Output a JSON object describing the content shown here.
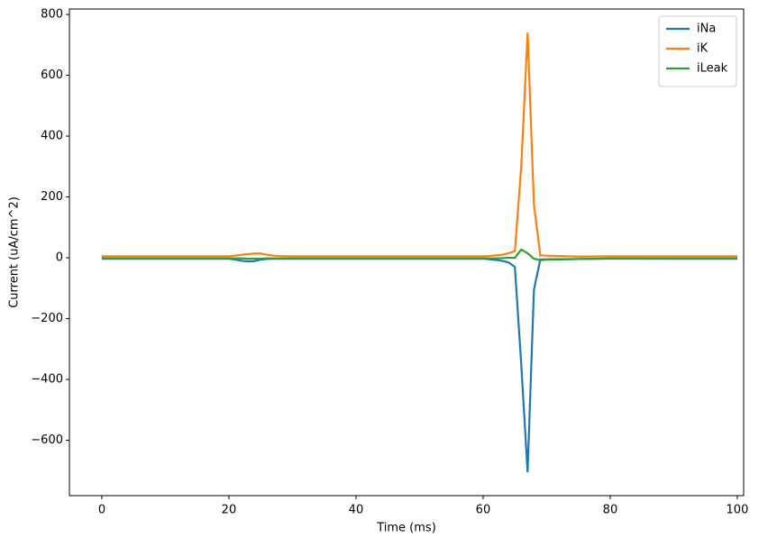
{
  "chart_data": {
    "type": "line",
    "x_label": "Time (ms)",
    "y_label": "Current (uA/cm^2)",
    "x": [
      0,
      20,
      21,
      22,
      23,
      24,
      25,
      26,
      27,
      28,
      30,
      35,
      40,
      50,
      60,
      61,
      62,
      63,
      64,
      65,
      66,
      67,
      68,
      69,
      70,
      75,
      80,
      90,
      100
    ],
    "series": [
      {
        "name": "iNa",
        "color": "#1f77b4",
        "values": [
          -3,
          -3,
          -6,
          -10,
          -12,
          -11,
          -6,
          -4,
          -3,
          -3,
          -3,
          -3,
          -3,
          -3,
          -3,
          -5,
          -7,
          -10,
          -15,
          -30,
          -350,
          -705,
          -105,
          -6,
          -5,
          -4,
          -3,
          -3,
          -3
        ]
      },
      {
        "name": "iK",
        "color": "#ff7f0e",
        "values": [
          5,
          5,
          7,
          10,
          12,
          14,
          14,
          10,
          7,
          6,
          5,
          5,
          5,
          5,
          5,
          6,
          8,
          10,
          15,
          22,
          300,
          740,
          175,
          8,
          7,
          4,
          5,
          5,
          5
        ]
      },
      {
        "name": "iLeak",
        "color": "#2ca02c",
        "values": [
          -2,
          -2,
          -2,
          -2,
          -3,
          -3,
          -3,
          -2,
          -2,
          -2,
          -2,
          -2,
          -2,
          -2,
          -2,
          -2,
          -2,
          -1,
          0,
          0,
          27,
          15,
          -3,
          -8,
          -6,
          -4,
          -2,
          -2,
          -2
        ]
      }
    ],
    "xlim": [
      -5.1,
      101
    ],
    "ylim": [
      -782,
      818
    ],
    "xticks": [
      0,
      20,
      40,
      60,
      80,
      100
    ],
    "yticks": [
      {
        "value": -600,
        "label": "−600"
      },
      {
        "value": -400,
        "label": "−400"
      },
      {
        "value": -200,
        "label": "−200"
      },
      0,
      200,
      400,
      600,
      800
    ],
    "legend": "upper right"
  }
}
